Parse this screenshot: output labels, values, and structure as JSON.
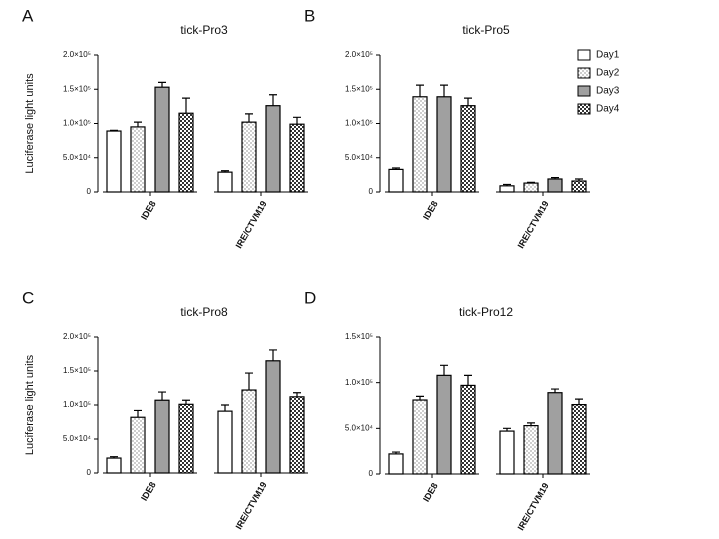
{
  "chart_data": [
    {
      "type": "bar",
      "panel": "A",
      "title": "tick-Pro3",
      "ylabel": "Luciferase light units",
      "categories": [
        "IDE8",
        "IRE/CTVM19"
      ],
      "legend": "none",
      "ylim": [
        0,
        200000
      ],
      "yticks": [
        {
          "value": 0,
          "label": "0"
        },
        {
          "value": 50000,
          "label": "5.0×10⁴"
        },
        {
          "value": 100000,
          "label": "1.0×10⁵"
        },
        {
          "value": 150000,
          "label": "1.5×10⁵"
        },
        {
          "value": 200000,
          "label": "2.0×10⁵"
        }
      ],
      "series": [
        {
          "name": "Day1",
          "color": "#ffffff",
          "pattern": "solid",
          "values": [
            89000,
            29000
          ],
          "errors": [
            1000,
            2000
          ]
        },
        {
          "name": "Day2",
          "color": "#ffffff",
          "pattern": "dots",
          "values": [
            95000,
            102000
          ],
          "errors": [
            7000,
            12000
          ]
        },
        {
          "name": "Day3",
          "color": "#a0a0a0",
          "pattern": "solid",
          "values": [
            153000,
            126000
          ],
          "errors": [
            7000,
            16000
          ]
        },
        {
          "name": "Day4",
          "color": "#ffffff",
          "pattern": "checker",
          "values": [
            115000,
            99000
          ],
          "errors": [
            22000,
            10000
          ]
        }
      ]
    },
    {
      "type": "bar",
      "panel": "B",
      "title": "tick-Pro5",
      "categories": [
        "IDE8",
        "IRE/CTVM19"
      ],
      "legend": "upper right",
      "ylim": [
        0,
        200000
      ],
      "yticks": [
        {
          "value": 0,
          "label": "0"
        },
        {
          "value": 50000,
          "label": "5.0×10⁴"
        },
        {
          "value": 100000,
          "label": "1.0×10⁵"
        },
        {
          "value": 150000,
          "label": "1.5×10⁵"
        },
        {
          "value": 200000,
          "label": "2.0×10⁵"
        }
      ],
      "series": [
        {
          "name": "Day1",
          "color": "#ffffff",
          "pattern": "solid",
          "values": [
            33000,
            9000
          ],
          "errors": [
            2000,
            2000
          ]
        },
        {
          "name": "Day2",
          "color": "#ffffff",
          "pattern": "dots",
          "values": [
            139000,
            13000
          ],
          "errors": [
            17000,
            1000
          ]
        },
        {
          "name": "Day3",
          "color": "#a0a0a0",
          "pattern": "solid",
          "values": [
            139000,
            19000
          ],
          "errors": [
            17000,
            2000
          ]
        },
        {
          "name": "Day4",
          "color": "#ffffff",
          "pattern": "checker",
          "values": [
            126000,
            16000
          ],
          "errors": [
            11000,
            3000
          ]
        }
      ]
    },
    {
      "type": "bar",
      "panel": "C",
      "title": "tick-Pro8",
      "ylabel": "Luciferase light units",
      "categories": [
        "IDE8",
        "IRE/CTVM19"
      ],
      "legend": "none",
      "ylim": [
        0,
        200000
      ],
      "yticks": [
        {
          "value": 0,
          "label": "0"
        },
        {
          "value": 50000,
          "label": "5.0×10⁴"
        },
        {
          "value": 100000,
          "label": "1.0×10⁵"
        },
        {
          "value": 150000,
          "label": "1.5×10⁵"
        },
        {
          "value": 200000,
          "label": "2.0×10⁵"
        }
      ],
      "series": [
        {
          "name": "Day1",
          "color": "#ffffff",
          "pattern": "solid",
          "values": [
            22000,
            91000
          ],
          "errors": [
            2000,
            9000
          ]
        },
        {
          "name": "Day2",
          "color": "#ffffff",
          "pattern": "dots",
          "values": [
            82000,
            122000
          ],
          "errors": [
            10000,
            25000
          ]
        },
        {
          "name": "Day3",
          "color": "#a0a0a0",
          "pattern": "solid",
          "values": [
            107000,
            165000
          ],
          "errors": [
            12000,
            16000
          ]
        },
        {
          "name": "Day4",
          "color": "#ffffff",
          "pattern": "checker",
          "values": [
            101000,
            112000
          ],
          "errors": [
            6000,
            6000
          ]
        }
      ]
    },
    {
      "type": "bar",
      "panel": "D",
      "title": "tick-Pro12",
      "categories": [
        "IDE8",
        "IRE/CTVM19"
      ],
      "legend": "none",
      "ylim": [
        0,
        150000
      ],
      "yticks": [
        {
          "value": 0,
          "label": "0"
        },
        {
          "value": 50000,
          "label": "5.0×10⁴"
        },
        {
          "value": 100000,
          "label": "1.0×10⁵"
        },
        {
          "value": 150000,
          "label": "1.5×10⁵"
        }
      ],
      "series": [
        {
          "name": "Day1",
          "color": "#ffffff",
          "pattern": "solid",
          "values": [
            22000,
            47000
          ],
          "errors": [
            2000,
            3000
          ]
        },
        {
          "name": "Day2",
          "color": "#ffffff",
          "pattern": "dots",
          "values": [
            81000,
            53000
          ],
          "errors": [
            4000,
            3000
          ]
        },
        {
          "name": "Day3",
          "color": "#a0a0a0",
          "pattern": "solid",
          "values": [
            108000,
            89000
          ],
          "errors": [
            11000,
            4000
          ]
        },
        {
          "name": "Day4",
          "color": "#ffffff",
          "pattern": "checker",
          "values": [
            97000,
            76000
          ],
          "errors": [
            11000,
            6000
          ]
        }
      ]
    }
  ]
}
